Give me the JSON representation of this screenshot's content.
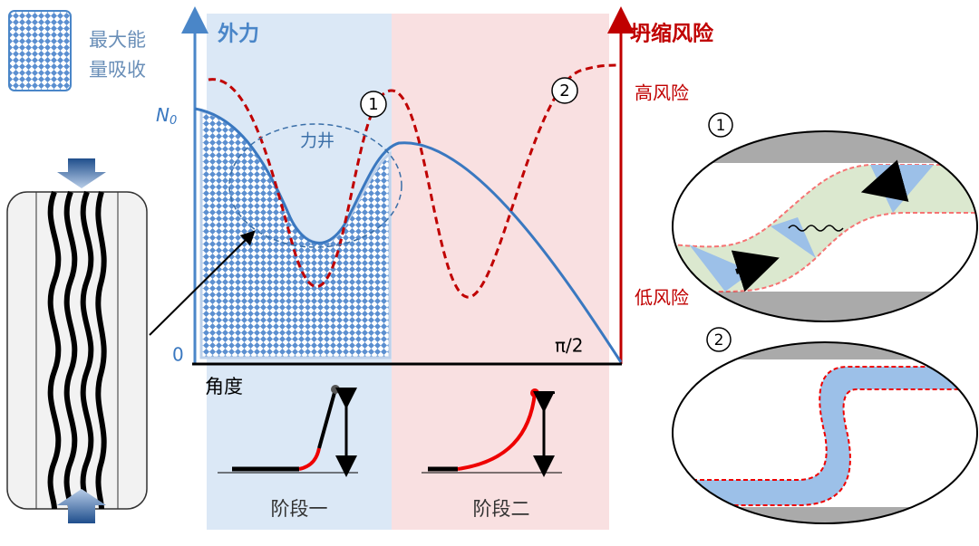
{
  "legend": {
    "lines": [
      "最大能",
      "量吸收"
    ]
  },
  "axes": {
    "left_label": "外力",
    "right_label": "坍缩风险",
    "y_top": "N",
    "y_top_sub": "0",
    "origin": "0",
    "x_end": "π/2",
    "x_label": "角度",
    "high": "高风险",
    "low": "低风险"
  },
  "annotation": "力井",
  "markers": [
    "1",
    "2"
  ],
  "stages": [
    "阶段一",
    "阶段二"
  ]
}
